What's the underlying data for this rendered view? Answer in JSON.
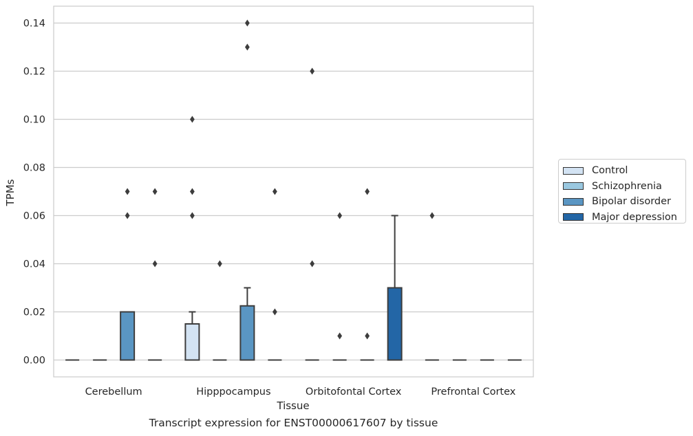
{
  "chart_data": {
    "type": "box",
    "title": "",
    "xlabel": "Tissue",
    "ylabel": "TPMs",
    "caption": "Transcript expression for ENST00000617607 by tissue",
    "categories": [
      "Cerebellum",
      "Hipppocampus",
      "Orbitofontal Cortex",
      "Prefrontal Cortex"
    ],
    "ylim": [
      -0.007,
      0.147
    ],
    "yticks": [
      "0.00",
      "0.02",
      "0.04",
      "0.06",
      "0.08",
      "0.10",
      "0.12",
      "0.14"
    ],
    "grid": true,
    "legend_position": "right",
    "series": [
      {
        "name": "Control",
        "color": "#d3e3f3",
        "boxes": [
          {
            "q1": 0,
            "median": 0,
            "q3": 0,
            "whisker_low": 0,
            "whisker_high": 0,
            "outliers": []
          },
          {
            "q1": 0,
            "median": 0,
            "q3": 0.015,
            "whisker_low": 0,
            "whisker_high": 0.02,
            "outliers": [
              0.06,
              0.07,
              0.1
            ]
          },
          {
            "q1": 0,
            "median": 0,
            "q3": 0,
            "whisker_low": 0,
            "whisker_high": 0,
            "outliers": [
              0.04,
              0.12
            ]
          },
          {
            "q1": 0,
            "median": 0,
            "q3": 0,
            "whisker_low": 0,
            "whisker_high": 0,
            "outliers": [
              0.06
            ]
          }
        ]
      },
      {
        "name": "Schizophrenia",
        "color": "#9ac8e0",
        "boxes": [
          {
            "q1": 0,
            "median": 0,
            "q3": 0,
            "whisker_low": 0,
            "whisker_high": 0,
            "outliers": []
          },
          {
            "q1": 0,
            "median": 0,
            "q3": 0,
            "whisker_low": 0,
            "whisker_high": 0,
            "outliers": [
              0.04
            ]
          },
          {
            "q1": 0,
            "median": 0,
            "q3": 0,
            "whisker_low": 0,
            "whisker_high": 0,
            "outliers": [
              0.01,
              0.06
            ]
          },
          {
            "q1": 0,
            "median": 0,
            "q3": 0,
            "whisker_low": 0,
            "whisker_high": 0,
            "outliers": []
          }
        ]
      },
      {
        "name": "Bipolar disorder",
        "color": "#5a96c3",
        "boxes": [
          {
            "q1": 0,
            "median": 0,
            "q3": 0.02,
            "whisker_low": 0,
            "whisker_high": 0.02,
            "outliers": [
              0.06,
              0.07
            ]
          },
          {
            "q1": 0,
            "median": 0,
            "q3": 0.0225,
            "whisker_low": 0,
            "whisker_high": 0.03,
            "outliers": [
              0.13,
              0.14
            ]
          },
          {
            "q1": 0,
            "median": 0,
            "q3": 0,
            "whisker_low": 0,
            "whisker_high": 0,
            "outliers": [
              0.01,
              0.07
            ]
          },
          {
            "q1": 0,
            "median": 0,
            "q3": 0,
            "whisker_low": 0,
            "whisker_high": 0,
            "outliers": []
          }
        ]
      },
      {
        "name": "Major depression",
        "color": "#2366a6",
        "boxes": [
          {
            "q1": 0,
            "median": 0,
            "q3": 0,
            "whisker_low": 0,
            "whisker_high": 0,
            "outliers": [
              0.04,
              0.07
            ]
          },
          {
            "q1": 0,
            "median": 0,
            "q3": 0,
            "whisker_low": 0,
            "whisker_high": 0,
            "outliers": [
              0.02,
              0.07
            ]
          },
          {
            "q1": 0,
            "median": 0,
            "q3": 0.03,
            "whisker_low": 0,
            "whisker_high": 0.06,
            "outliers": []
          },
          {
            "q1": 0,
            "median": 0,
            "q3": 0,
            "whisker_low": 0,
            "whisker_high": 0,
            "outliers": []
          }
        ]
      }
    ]
  }
}
